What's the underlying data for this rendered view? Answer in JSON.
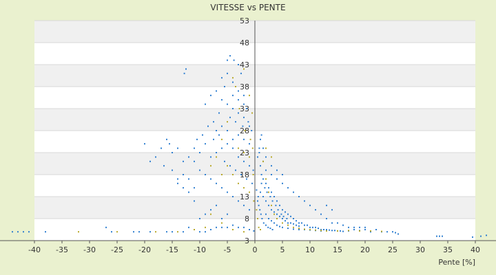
{
  "chart_data": {
    "type": "scatter",
    "title": "VITESSE vs PENTE",
    "xlabel": "Pente [%]",
    "ylabel": "",
    "xlim": [
      -40,
      40
    ],
    "ylim": [
      3,
      53
    ],
    "x_ticks": [
      -40,
      -35,
      -30,
      -25,
      -20,
      -15,
      -10,
      -5,
      0,
      5,
      10,
      15,
      20,
      25,
      30,
      35,
      40
    ],
    "x_tick_labels": [
      "-40",
      "-35",
      "-30",
      "-25",
      "-20",
      "-15",
      "-10",
      "-5",
      "0",
      "5",
      "10",
      "15",
      "20",
      "25",
      "30",
      "35",
      "40"
    ],
    "y_ticks": [
      3,
      8,
      13,
      18,
      23,
      28,
      33,
      38,
      43,
      48,
      53
    ],
    "y_tick_labels": [
      "3",
      "8",
      "13",
      "18",
      "23",
      "28",
      "33",
      "38",
      "43",
      "48",
      "53"
    ],
    "grid": "horizontal bands",
    "legend": "none",
    "colors": {
      "page_bg": "#eaf1cf",
      "plot_band_light": "#ffffff",
      "plot_band_dark": "#f0f0f0",
      "gridline": "#d8d8d8",
      "axis": "#555555",
      "series_main": "#2f7fd1",
      "series_secondary": "#b8a828"
    },
    "series": [
      {
        "color": "#2f7fd1",
        "points": [
          [
            -44,
            5
          ],
          [
            -43,
            5
          ],
          [
            -42,
            5
          ],
          [
            -41,
            5
          ],
          [
            -38,
            5
          ],
          [
            -27,
            6
          ],
          [
            -26,
            5
          ],
          [
            -22,
            5
          ],
          [
            -21,
            5
          ],
          [
            -19,
            5
          ],
          [
            -16,
            5
          ],
          [
            -15,
            5
          ],
          [
            -13,
            5
          ],
          [
            -12,
            6
          ],
          [
            -10,
            5
          ],
          [
            -9,
            5
          ],
          [
            -8,
            5.5
          ],
          [
            -7,
            6
          ],
          [
            -6,
            6
          ],
          [
            -5,
            6
          ],
          [
            -4,
            6.5
          ],
          [
            -3,
            6
          ],
          [
            -2,
            6
          ],
          [
            -1,
            5.5
          ],
          [
            -0.2,
            5.2
          ],
          [
            -12.5,
            42
          ],
          [
            -12.8,
            41
          ],
          [
            -5,
            44
          ],
          [
            -4.5,
            45
          ],
          [
            -3.8,
            44
          ],
          [
            -3,
            43
          ],
          [
            -2.5,
            41
          ],
          [
            -6,
            40
          ],
          [
            -5.5,
            38
          ],
          [
            -7,
            37
          ],
          [
            -8,
            36
          ],
          [
            -9,
            34
          ],
          [
            -4,
            36
          ],
          [
            -3,
            35
          ],
          [
            -2,
            34
          ],
          [
            -1.5,
            33
          ],
          [
            -6.5,
            32
          ],
          [
            -4.5,
            31
          ],
          [
            -3.5,
            30
          ],
          [
            -2.2,
            29
          ],
          [
            -1.2,
            30
          ],
          [
            -0.6,
            28
          ],
          [
            -7.5,
            30
          ],
          [
            -8.5,
            29
          ],
          [
            -9.5,
            27
          ],
          [
            -10.5,
            26
          ],
          [
            -11,
            24
          ],
          [
            -12,
            22
          ],
          [
            -13,
            21
          ],
          [
            -14,
            24
          ],
          [
            -15,
            23
          ],
          [
            -15.5,
            25
          ],
          [
            -16,
            26
          ],
          [
            -17,
            24
          ],
          [
            -18,
            22
          ],
          [
            -19,
            21
          ],
          [
            -20,
            25
          ],
          [
            -16.5,
            20
          ],
          [
            -15,
            19
          ],
          [
            -14,
            17
          ],
          [
            -13,
            15
          ],
          [
            -12,
            14
          ],
          [
            -11,
            12
          ],
          [
            -10,
            19
          ],
          [
            -9,
            18
          ],
          [
            -8,
            17
          ],
          [
            -7,
            16
          ],
          [
            -6,
            15
          ],
          [
            -5,
            14
          ],
          [
            -4,
            13
          ],
          [
            -3,
            12
          ],
          [
            -2,
            11
          ],
          [
            -1,
            10
          ],
          [
            -8,
            22
          ],
          [
            -7,
            23
          ],
          [
            -6,
            24
          ],
          [
            -5,
            25
          ],
          [
            -4,
            26
          ],
          [
            -3,
            27
          ],
          [
            -2,
            26
          ],
          [
            -1,
            25
          ],
          [
            -5.5,
            21
          ],
          [
            -4.5,
            20
          ],
          [
            -3.5,
            19
          ],
          [
            -2.5,
            18
          ],
          [
            -1.5,
            17
          ],
          [
            -0.5,
            16
          ],
          [
            -6.5,
            27
          ],
          [
            -7.5,
            26
          ],
          [
            -9,
            25
          ],
          [
            -10,
            23
          ],
          [
            -11,
            21
          ],
          [
            -3,
            22
          ],
          [
            -2,
            21
          ],
          [
            -1,
            20
          ],
          [
            -0.3,
            19
          ],
          [
            -4,
            24
          ],
          [
            -5,
            28
          ],
          [
            -6,
            29
          ],
          [
            -7,
            28
          ],
          [
            -3,
            32
          ],
          [
            -2,
            31
          ],
          [
            -1,
            29
          ],
          [
            -4,
            33
          ],
          [
            -5,
            34
          ],
          [
            -6,
            35
          ],
          [
            -3,
            37
          ],
          [
            -2,
            36
          ],
          [
            -4,
            39
          ],
          [
            -5,
            41
          ],
          [
            -9,
            9
          ],
          [
            -10,
            8
          ],
          [
            -8,
            10
          ],
          [
            -7,
            11
          ],
          [
            -6,
            8
          ],
          [
            -5,
            9
          ],
          [
            -12,
            17
          ],
          [
            -13,
            18
          ],
          [
            -14,
            16
          ],
          [
            -11,
            15
          ],
          [
            0.5,
            22
          ],
          [
            0.8,
            24
          ],
          [
            1,
            20
          ],
          [
            1.2,
            18
          ],
          [
            1.5,
            17
          ],
          [
            2,
            16
          ],
          [
            2.5,
            15
          ],
          [
            3,
            14
          ],
          [
            3.5,
            13
          ],
          [
            4,
            12
          ],
          [
            4.5,
            11
          ],
          [
            5,
            10
          ],
          [
            5.5,
            9.5
          ],
          [
            6,
            9
          ],
          [
            6.5,
            8.5
          ],
          [
            7,
            8
          ],
          [
            7.5,
            7.5
          ],
          [
            8,
            7
          ],
          [
            8.5,
            7
          ],
          [
            9,
            6.5
          ],
          [
            9.5,
            6.5
          ],
          [
            10,
            6
          ],
          [
            10.5,
            6
          ],
          [
            11,
            6
          ],
          [
            11.5,
            5.8
          ],
          [
            12,
            5.5
          ],
          [
            12.5,
            5.5
          ],
          [
            13,
            5.5
          ],
          [
            13.5,
            5.4
          ],
          [
            14,
            5.3
          ],
          [
            14.5,
            5.3
          ],
          [
            15,
            5.2
          ],
          [
            15.5,
            5.2
          ],
          [
            16,
            5.1
          ],
          [
            17,
            5.2
          ],
          [
            18,
            5.5
          ],
          [
            19,
            5.3
          ],
          [
            20,
            5.5
          ],
          [
            21,
            5
          ],
          [
            22,
            5.5
          ],
          [
            23,
            5
          ],
          [
            24,
            5
          ],
          [
            25,
            5
          ],
          [
            25.5,
            4.8
          ],
          [
            26,
            4.5
          ],
          [
            1,
            14
          ],
          [
            1.5,
            13
          ],
          [
            2,
            12
          ],
          [
            2.5,
            11
          ],
          [
            3,
            10
          ],
          [
            3.5,
            9.5
          ],
          [
            4,
            9
          ],
          [
            4.5,
            8.5
          ],
          [
            5,
            8
          ],
          [
            5.5,
            7.5
          ],
          [
            6,
            7
          ],
          [
            6.5,
            7
          ],
          [
            7,
            6.8
          ],
          [
            7.5,
            6.5
          ],
          [
            8,
            6.3
          ],
          [
            1.2,
            16
          ],
          [
            1.8,
            15
          ],
          [
            2.2,
            14
          ],
          [
            2.8,
            13
          ],
          [
            3.2,
            12
          ],
          [
            3.8,
            11
          ],
          [
            4.2,
            10
          ],
          [
            4.8,
            9
          ],
          [
            5.2,
            8.5
          ],
          [
            5.8,
            8
          ],
          [
            3,
            18
          ],
          [
            4,
            17
          ],
          [
            5,
            16
          ],
          [
            6,
            15
          ],
          [
            7,
            14
          ],
          [
            8,
            13
          ],
          [
            9,
            12
          ],
          [
            10,
            11
          ],
          [
            11,
            10
          ],
          [
            12,
            9
          ],
          [
            13,
            8
          ],
          [
            14,
            7
          ],
          [
            15,
            7
          ],
          [
            16,
            6.5
          ],
          [
            17,
            6
          ],
          [
            18,
            6
          ],
          [
            19,
            6
          ],
          [
            20,
            6
          ],
          [
            13,
            11
          ],
          [
            14,
            10
          ],
          [
            0.5,
            12
          ],
          [
            0.7,
            11
          ],
          [
            0.9,
            10
          ],
          [
            1.1,
            9
          ],
          [
            1.3,
            8
          ],
          [
            1.6,
            7
          ],
          [
            2,
            6.5
          ],
          [
            2.4,
            6
          ],
          [
            2.8,
            5.8
          ],
          [
            3.2,
            5.5
          ],
          [
            0.3,
            14.5
          ],
          [
            0.6,
            13
          ],
          [
            2,
            9
          ],
          [
            2.5,
            8
          ],
          [
            3,
            7.5
          ],
          [
            3.5,
            7
          ],
          [
            4,
            6.5
          ],
          [
            4.5,
            6.2
          ],
          [
            5,
            6
          ],
          [
            6,
            5.8
          ],
          [
            7,
            5.6
          ],
          [
            8,
            5.5
          ],
          [
            9,
            5.5
          ],
          [
            10,
            5.4
          ],
          [
            11,
            5.3
          ],
          [
            12,
            5.2
          ],
          [
            1,
            26
          ],
          [
            1.5,
            24
          ],
          [
            2,
            22
          ],
          [
            3,
            20
          ],
          [
            4,
            19
          ],
          [
            5,
            18
          ],
          [
            2,
            19
          ],
          [
            1.5,
            21
          ],
          [
            0.8,
            23
          ],
          [
            1.2,
            27
          ],
          [
            33,
            4
          ],
          [
            33.5,
            4
          ],
          [
            34,
            4
          ],
          [
            39.5,
            3.8
          ],
          [
            41,
            4
          ],
          [
            42,
            4.2
          ]
        ]
      },
      {
        "color": "#b8a828",
        "points": [
          [
            -32,
            5
          ],
          [
            -25,
            5
          ],
          [
            -18,
            5
          ],
          [
            -14,
            5
          ],
          [
            -11,
            5.5
          ],
          [
            -9,
            6
          ],
          [
            -8,
            9
          ],
          [
            -6,
            7
          ],
          [
            -4,
            5.5
          ],
          [
            -2,
            5
          ],
          [
            -4,
            40
          ],
          [
            -3.5,
            38
          ],
          [
            -2,
            42
          ],
          [
            -1,
            36
          ],
          [
            -2.8,
            33
          ],
          [
            -1.8,
            28
          ],
          [
            -0.8,
            26
          ],
          [
            -5,
            30
          ],
          [
            -6,
            26
          ],
          [
            -7,
            22
          ],
          [
            -3,
            24
          ],
          [
            -2,
            23
          ],
          [
            -1,
            22
          ],
          [
            -4,
            18
          ],
          [
            -3,
            16
          ],
          [
            -2,
            15
          ],
          [
            -1,
            14
          ],
          [
            -5,
            20
          ],
          [
            -6,
            18
          ],
          [
            -8,
            20
          ],
          [
            -0.5,
            32
          ],
          [
            -0.4,
            24
          ],
          [
            -0.3,
            18
          ],
          [
            -0.2,
            12
          ],
          [
            0.3,
            10
          ],
          [
            0.5,
            8
          ],
          [
            0.7,
            6
          ],
          [
            1,
            5.5
          ],
          [
            1.5,
            21
          ],
          [
            2,
            17
          ],
          [
            2.5,
            14
          ],
          [
            3,
            11
          ],
          [
            3.5,
            9
          ],
          [
            4,
            8
          ],
          [
            5,
            7
          ],
          [
            6,
            6.5
          ],
          [
            7,
            6
          ],
          [
            8,
            5.8
          ],
          [
            9,
            5.6
          ],
          [
            10,
            5.5
          ],
          [
            11,
            5.4
          ],
          [
            12,
            5.3
          ],
          [
            13,
            5.2
          ],
          [
            15,
            5.2
          ],
          [
            17,
            5.3
          ],
          [
            19,
            5.2
          ],
          [
            21,
            5.2
          ],
          [
            23,
            5.1
          ],
          [
            2,
            24
          ],
          [
            3,
            22
          ]
        ]
      }
    ]
  }
}
